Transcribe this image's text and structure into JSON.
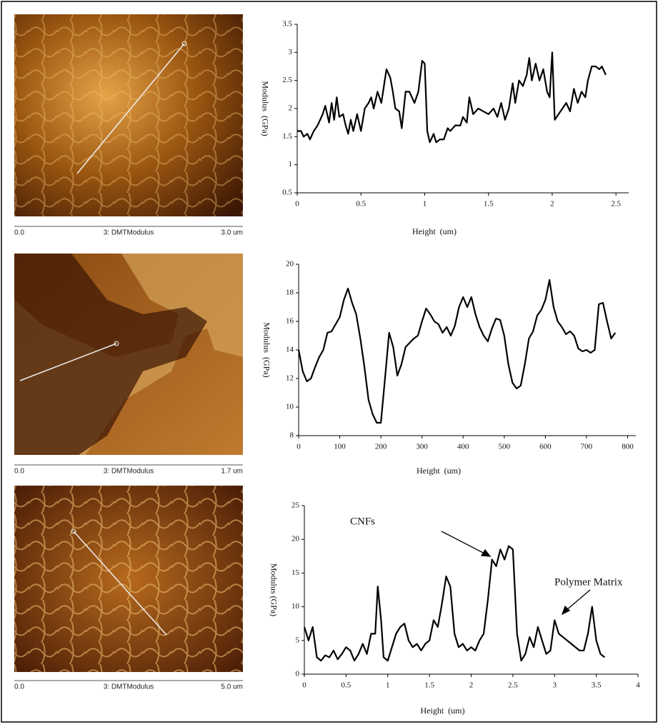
{
  "images": [
    {
      "start": "0.0",
      "label": "3: DMTModulus",
      "end": "3.0 um"
    },
    {
      "start": "0.0",
      "label": "3: DMTModulus",
      "end": "1.7 um"
    },
    {
      "start": "0.0",
      "label": "3: DMTModulus",
      "end": "5.0 um"
    }
  ],
  "chart_data": [
    {
      "type": "line",
      "x_label": "Height  (um)",
      "y_label": "Modulus  (GPa)",
      "color": "#000000",
      "grid": false,
      "x": [
        0,
        0.03,
        0.05,
        0.08,
        0.1,
        0.13,
        0.16,
        0.2,
        0.22,
        0.25,
        0.27,
        0.29,
        0.31,
        0.33,
        0.36,
        0.38,
        0.4,
        0.42,
        0.44,
        0.47,
        0.5,
        0.53,
        0.56,
        0.58,
        0.6,
        0.63,
        0.66,
        0.7,
        0.73,
        0.75,
        0.77,
        0.8,
        0.82,
        0.85,
        0.88,
        0.92,
        0.95,
        0.98,
        1.0,
        1.02,
        1.04,
        1.07,
        1.09,
        1.12,
        1.15,
        1.18,
        1.2,
        1.24,
        1.28,
        1.3,
        1.33,
        1.35,
        1.38,
        1.42,
        1.46,
        1.5,
        1.54,
        1.57,
        1.6,
        1.63,
        1.66,
        1.69,
        1.71,
        1.74,
        1.77,
        1.8,
        1.82,
        1.84,
        1.87,
        1.9,
        1.93,
        1.96,
        1.98,
        2.0,
        2.02,
        2.05,
        2.08,
        2.11,
        2.14,
        2.17,
        2.2,
        2.23,
        2.26,
        2.28,
        2.31,
        2.34,
        2.37,
        2.39,
        2.42
      ],
      "series": [
        {
          "values": [
            1.6,
            1.6,
            1.5,
            1.55,
            1.45,
            1.6,
            1.7,
            1.9,
            2.05,
            1.75,
            2.1,
            1.8,
            2.2,
            1.85,
            1.9,
            1.7,
            1.55,
            1.8,
            1.6,
            1.9,
            1.6,
            2.0,
            2.1,
            2.2,
            2.0,
            2.3,
            2.1,
            2.7,
            2.55,
            2.3,
            2.0,
            1.95,
            1.65,
            2.3,
            2.3,
            2.1,
            2.3,
            2.85,
            2.8,
            1.6,
            1.4,
            1.55,
            1.4,
            1.45,
            1.45,
            1.65,
            1.6,
            1.7,
            1.7,
            1.85,
            1.75,
            2.2,
            1.9,
            2.0,
            1.95,
            1.9,
            2.0,
            1.85,
            2.1,
            1.8,
            2.0,
            2.45,
            2.1,
            2.5,
            2.4,
            2.6,
            2.9,
            2.5,
            2.8,
            2.5,
            2.7,
            2.3,
            2.2,
            3.0,
            1.8,
            1.9,
            2.0,
            2.1,
            1.95,
            2.35,
            2.1,
            2.3,
            2.2,
            2.5,
            2.75,
            2.75,
            2.7,
            2.75,
            2.6
          ]
        }
      ],
      "xlim": [
        0,
        2.6
      ],
      "xticks": [
        0,
        0.5,
        1,
        1.5,
        2,
        2.5
      ],
      "ylim": [
        0.5,
        3.5
      ],
      "yticks": [
        0.5,
        1,
        1.5,
        2,
        2.5,
        3,
        3.5
      ]
    },
    {
      "type": "line",
      "x_label": "Height  (um)",
      "y_label": "Modulus  (GPa)",
      "color": "#000000",
      "grid": false,
      "x": [
        0,
        10,
        20,
        30,
        40,
        50,
        60,
        70,
        80,
        90,
        100,
        110,
        120,
        130,
        140,
        150,
        160,
        170,
        180,
        190,
        200,
        210,
        220,
        230,
        240,
        250,
        260,
        270,
        280,
        290,
        300,
        310,
        320,
        330,
        340,
        350,
        360,
        370,
        380,
        390,
        400,
        410,
        420,
        430,
        440,
        450,
        460,
        470,
        480,
        490,
        500,
        510,
        520,
        530,
        540,
        550,
        560,
        570,
        580,
        590,
        600,
        610,
        620,
        630,
        640,
        650,
        660,
        670,
        680,
        690,
        700,
        710,
        720,
        730,
        740,
        750,
        760,
        770
      ],
      "series": [
        {
          "values": [
            14,
            12.5,
            11.8,
            12,
            12.8,
            13.5,
            14,
            15.2,
            15.3,
            15.8,
            16.3,
            17.5,
            18.3,
            17.3,
            16.5,
            14.8,
            12.8,
            10.5,
            9.5,
            8.9,
            8.9,
            12,
            15.2,
            14.2,
            12.2,
            13,
            14.2,
            14.5,
            14.8,
            15,
            16,
            16.9,
            16.5,
            16,
            15.8,
            15.2,
            15.6,
            15,
            15.7,
            17,
            17.7,
            17,
            17.7,
            16.5,
            15.6,
            15,
            14.6,
            15.5,
            16.2,
            16.1,
            15,
            13,
            11.7,
            11.3,
            11.5,
            13,
            14.8,
            15.3,
            16.4,
            16.8,
            17.5,
            18.9,
            17,
            16,
            15.6,
            15.1,
            15.3,
            15,
            14.1,
            13.9,
            14,
            13.8,
            14,
            17.2,
            17.3,
            16,
            14.8,
            15.2
          ]
        }
      ],
      "xlim": [
        0,
        820
      ],
      "xticks": [
        0,
        100,
        200,
        300,
        400,
        500,
        600,
        700,
        800
      ],
      "ylim": [
        8,
        20
      ],
      "yticks": [
        8,
        10,
        12,
        14,
        16,
        18,
        20
      ]
    },
    {
      "type": "line",
      "x_label": "Height  (um)",
      "y_label": "Modulus (GPa)",
      "color": "#000000",
      "grid": false,
      "annotations": [
        {
          "text": "CNFs"
        },
        {
          "text": "Polymer Matrix"
        }
      ],
      "x": [
        0,
        0.05,
        0.1,
        0.15,
        0.2,
        0.25,
        0.3,
        0.35,
        0.4,
        0.45,
        0.5,
        0.55,
        0.6,
        0.65,
        0.7,
        0.75,
        0.8,
        0.85,
        0.88,
        0.92,
        0.95,
        1.0,
        1.05,
        1.1,
        1.15,
        1.2,
        1.25,
        1.3,
        1.35,
        1.4,
        1.45,
        1.5,
        1.55,
        1.6,
        1.65,
        1.7,
        1.75,
        1.8,
        1.85,
        1.9,
        1.95,
        2.0,
        2.05,
        2.1,
        2.15,
        2.2,
        2.25,
        2.3,
        2.35,
        2.4,
        2.45,
        2.5,
        2.55,
        2.6,
        2.65,
        2.7,
        2.75,
        2.8,
        2.85,
        2.9,
        2.95,
        3.0,
        3.05,
        3.1,
        3.15,
        3.2,
        3.25,
        3.3,
        3.35,
        3.4,
        3.45,
        3.5,
        3.55,
        3.6
      ],
      "series": [
        {
          "values": [
            7,
            5,
            7,
            2.5,
            2,
            2.8,
            2.5,
            3.5,
            2.2,
            3,
            4,
            3.5,
            2,
            3,
            4.5,
            3,
            6,
            6,
            13,
            8,
            2.5,
            2,
            4,
            6,
            7,
            7.5,
            5,
            4,
            4.5,
            3.5,
            4.5,
            5,
            8,
            7,
            10.5,
            14.5,
            13,
            6,
            4,
            4.5,
            3.5,
            4,
            3.5,
            5,
            6,
            11,
            17,
            16,
            18.5,
            17,
            19,
            18.5,
            6,
            2,
            3,
            5.5,
            4,
            7,
            5,
            3,
            3.5,
            8,
            6,
            5.5,
            5,
            4.5,
            4,
            3.5,
            3.5,
            6,
            10,
            5,
            3,
            2.5
          ]
        }
      ],
      "xlim": [
        0,
        4
      ],
      "xticks": [
        0,
        0.5,
        1,
        1.5,
        2,
        2.5,
        3,
        3.5,
        4
      ],
      "ylim": [
        0,
        25
      ],
      "yticks": [
        0,
        5,
        10,
        15,
        20,
        25
      ]
    }
  ]
}
